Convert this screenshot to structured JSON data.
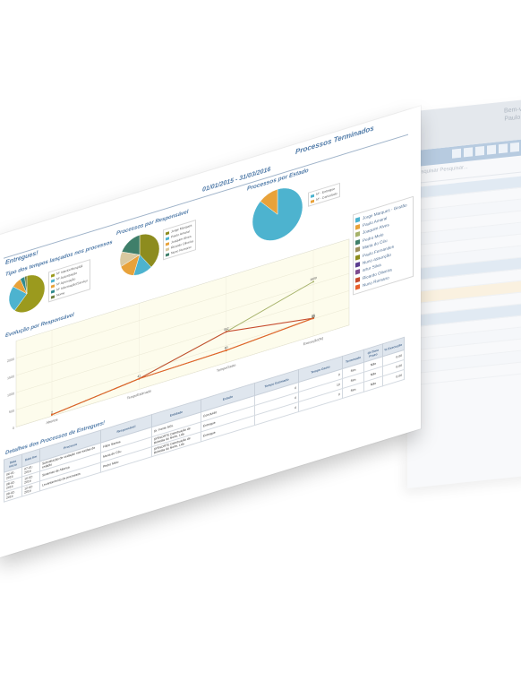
{
  "back_window": {
    "header_line1": "Bem-vindo(a)",
    "header_line2": "Paulo Amaral",
    "search_label": "Pesquisar",
    "search_placeholder": "Pesquisar..."
  },
  "report": {
    "title": "Processos Terminados",
    "date_range": "01/01/2015 - 31/03/2016",
    "section": "Entregues!",
    "table_title": "Detalhes dos Processos de Entregues!"
  },
  "charts": {
    "pie_tipos": {
      "title": "Tipo dos tempos lançados nos processos",
      "legend": [
        "Nº Interior/Hospital",
        "Nº Autorização",
        "Nº Aprovação",
        "Nº Informação/Serviço",
        "Nome"
      ]
    },
    "pie_responsavel": {
      "title": "Processos por Responsável",
      "legend": [
        "Jorge Marques",
        "Paulo Amaral",
        "Joaquim Alves",
        "Ricardo Oliveira",
        "Nuno Romano"
      ]
    },
    "pie_estado": {
      "title": "Processos por Estado",
      "legend": [
        "Nº - Entregue",
        "Nº - Cancelado"
      ]
    },
    "evolucao": {
      "title": "Evolução por Responsável",
      "legend": [
        "Jorge Marques - Gestão",
        "Paulo Amaral",
        "Joaquim Alves",
        "Pedro Melo",
        "Maria do Céu",
        "Paulo Fernandes",
        "Nuno assunção",
        "artur Silva",
        "Ricardo Oliveira",
        "Nuno Romano"
      ]
    }
  },
  "chart_data": [
    {
      "type": "pie",
      "title": "Tipo dos tempos lançados nos processos",
      "categories": [
        "Nº Interior/Hospital",
        "Nº Autorização",
        "Nº Aprovação",
        "Nº Informação/Serviço",
        "Nome"
      ],
      "values": [
        62,
        24,
        8,
        4,
        2
      ],
      "colors": [
        "#9b9a1e",
        "#4db3cf",
        "#e8a23a",
        "#2f8a8d",
        "#6f7f3f"
      ]
    },
    {
      "type": "pie",
      "title": "Processos por Responsável",
      "categories": [
        "Jorge Marques",
        "Paulo Amaral",
        "Joaquim Alves",
        "Ricardo Oliveira",
        "Nuno Romano"
      ],
      "values": [
        40,
        15,
        15,
        12,
        18
      ],
      "colors": [
        "#8d8c1e",
        "#4db3cf",
        "#e8a23a",
        "#d9c9a0",
        "#3f7f6a"
      ]
    },
    {
      "type": "pie",
      "title": "Processos por Estado",
      "categories": [
        "Nº - Entregue",
        "Nº - Cancelado"
      ],
      "values": [
        88,
        12
      ],
      "colors": [
        "#4db3cf",
        "#e8a23a"
      ]
    },
    {
      "type": "line",
      "title": "Evolução por Responsável",
      "categories": [
        "Abertos",
        "TempoEstimado",
        "TempoGasto",
        "Execução(%)"
      ],
      "ylim": [
        0,
        2500
      ],
      "yticks": [
        "0",
        "500",
        "1000",
        "1500",
        "2000"
      ],
      "data_labels": [
        "2",
        "41",
        "352",
        "80",
        "1600",
        "95",
        "98"
      ],
      "series": [
        {
          "name": "Joaquim Alves",
          "values": [
            40,
            310,
            900,
            1580
          ],
          "color": "#a6b26a"
        },
        {
          "name": "Jorge Marques - Gestão",
          "values": [
            40,
            310,
            900,
            520
          ],
          "color": "#c64b2e"
        },
        {
          "name": "Paulo Amaral",
          "values": [
            40,
            310,
            355,
            520
          ],
          "color": "#8d8c1e"
        },
        {
          "name": "Nuno Romano",
          "values": [
            40,
            310,
            360,
            515
          ],
          "color": "#e8602c"
        }
      ]
    }
  ],
  "table": {
    "headers": [
      "Data inicio",
      "Data fim",
      "Processo",
      "Responsável",
      "Entidade",
      "Estado",
      "Tempo Estimado",
      "Tempo Gasto",
      "Terminado",
      "OnTime Prazo",
      "% Execução"
    ],
    "rows": [
      [
        "06-01-2016",
        "07-01-2016",
        "Substituição de vedação nas saídas do estádio",
        "Filipe Santos",
        "Dr. Fonte SGL",
        "Concluído",
        "0",
        "0",
        "Sim",
        "Não",
        "0,00"
      ],
      [
        "08-02-2016",
        "10-02-2016",
        "Sistemas de Aliança",
        "Maria do Céu",
        "DISNORTE Distribuição de Bebidas do Norte, Lda",
        "Entregue",
        "0",
        "10",
        "Sim",
        "Não",
        "0,00"
      ],
      [
        "09-02-2016",
        "12-02-2016",
        "Levantamento de processos",
        "Pedro Melo",
        "DISNORTE Distribuição de Bebidas do Norte, Lda",
        "Entregue",
        "0",
        "0",
        "Sim",
        "Não",
        "0,00"
      ]
    ]
  }
}
